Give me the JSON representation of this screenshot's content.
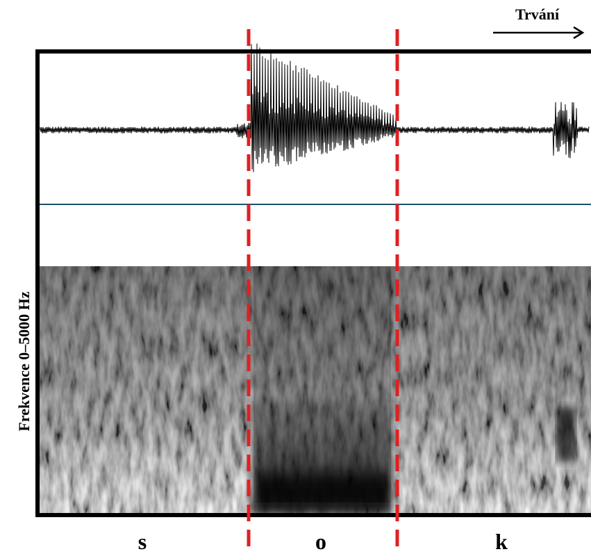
{
  "header": {
    "title": "Trvání"
  },
  "axis": {
    "label": "Frekvence 0–5000 Hz"
  },
  "segments": [
    "s",
    "o",
    "k"
  ]
}
